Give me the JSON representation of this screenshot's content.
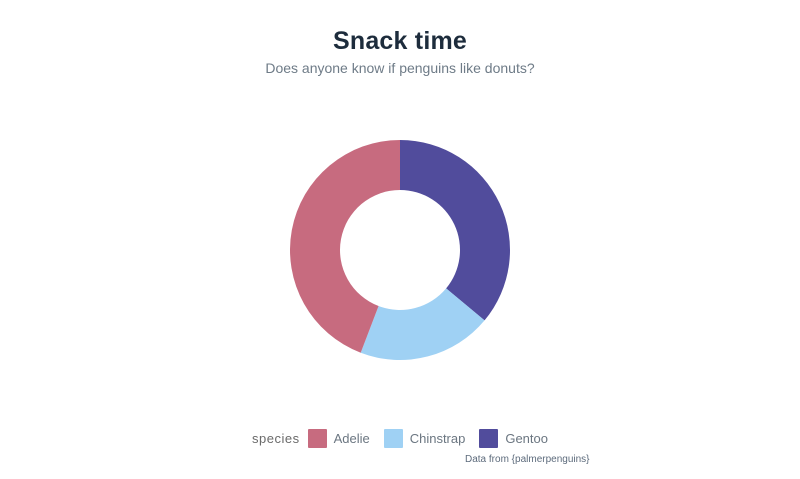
{
  "header": {
    "title": "Snack time",
    "subtitle": "Does anyone know if penguins like donuts?"
  },
  "legend": {
    "label": "species",
    "items": [
      {
        "label": "Adelie",
        "color": "#c76b7f"
      },
      {
        "label": "Chinstrap",
        "color": "#9fd1f4"
      },
      {
        "label": "Gentoo",
        "color": "#514c9c"
      }
    ]
  },
  "caption": "Data from {palmerpenguins}",
  "chart_data": {
    "type": "pie",
    "donut": true,
    "title": "Snack time",
    "subtitle": "Does anyone know if penguins like donuts?",
    "categories": [
      "Adelie",
      "Chinstrap",
      "Gentoo"
    ],
    "values": [
      152,
      68,
      124
    ],
    "percentages": [
      44.2,
      19.8,
      36.0
    ],
    "colors": [
      "#c76b7f",
      "#9fd1f4",
      "#514c9c"
    ],
    "legend_title": "species",
    "legend_position": "bottom",
    "caption": "Data from {palmerpenguins}",
    "start_angle_deg": 0,
    "start": "top",
    "order_clockwise_from_top": [
      "Gentoo",
      "Chinstrap",
      "Adelie"
    ],
    "inner_radius_ratio": 0.545,
    "outer_radius_px": 110,
    "inner_radius_px": 60,
    "background": "#ffffff"
  }
}
